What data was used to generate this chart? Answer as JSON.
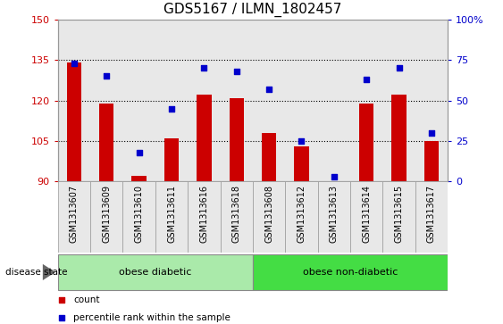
{
  "title": "GDS5167 / ILMN_1802457",
  "samples": [
    "GSM1313607",
    "GSM1313609",
    "GSM1313610",
    "GSM1313611",
    "GSM1313616",
    "GSM1313618",
    "GSM1313608",
    "GSM1313612",
    "GSM1313613",
    "GSM1313614",
    "GSM1313615",
    "GSM1313617"
  ],
  "bar_values": [
    134,
    119,
    92,
    106,
    122,
    121,
    108,
    103,
    90,
    119,
    122,
    105
  ],
  "percentile_values": [
    73,
    65,
    18,
    45,
    70,
    68,
    57,
    25,
    3,
    63,
    70,
    30
  ],
  "bar_bottom": 90,
  "ylim_left": [
    90,
    150
  ],
  "ylim_right": [
    0,
    100
  ],
  "yticks_left": [
    90,
    105,
    120,
    135,
    150
  ],
  "yticks_right": [
    0,
    25,
    50,
    75,
    100
  ],
  "bar_color": "#cc0000",
  "percentile_color": "#0000cc",
  "grid_ticks": [
    105,
    120,
    135
  ],
  "disease_groups": [
    {
      "label": "obese diabetic",
      "start": 0,
      "end": 6,
      "color": "#aaeaaa"
    },
    {
      "label": "obese non-diabetic",
      "start": 6,
      "end": 12,
      "color": "#44dd44"
    }
  ],
  "group_label": "disease state",
  "legend_items": [
    {
      "label": "count",
      "color": "#cc0000"
    },
    {
      "label": "percentile rank within the sample",
      "color": "#0000cc"
    }
  ],
  "col_bg_color": "#e8e8e8",
  "plot_bg": "#ffffff",
  "title_fontsize": 11,
  "tick_label_fontsize": 7
}
